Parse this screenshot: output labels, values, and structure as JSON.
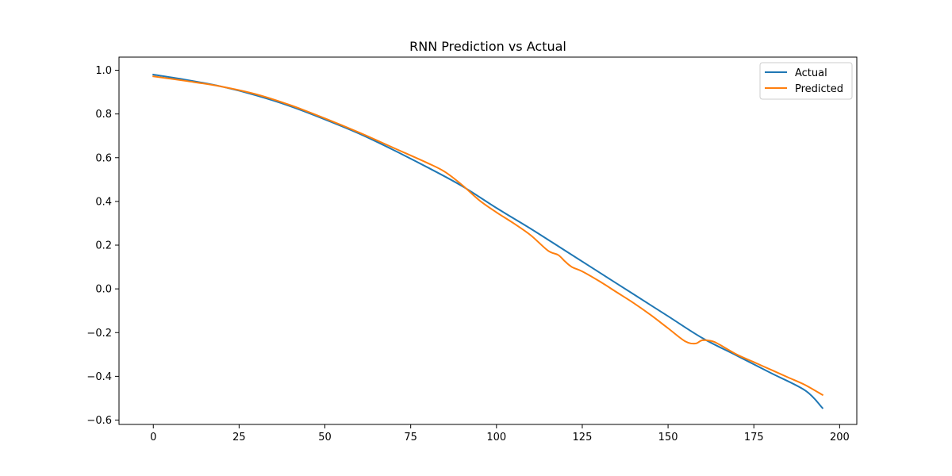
{
  "chart_data": {
    "type": "line",
    "title": "RNN Prediction vs Actual",
    "xlabel": "",
    "ylabel": "",
    "xlim": [
      -10,
      205
    ],
    "ylim": [
      -0.62,
      1.06
    ],
    "xticks": [
      0,
      25,
      50,
      75,
      100,
      125,
      150,
      175,
      200
    ],
    "yticks": [
      -0.6,
      -0.4,
      -0.2,
      0.0,
      0.2,
      0.4,
      0.6,
      0.8,
      1.0
    ],
    "xtick_labels": [
      "0",
      "25",
      "50",
      "75",
      "100",
      "125",
      "150",
      "175",
      "200"
    ],
    "ytick_labels": [
      "−0.6",
      "−0.4",
      "−0.2",
      "0.0",
      "0.2",
      "0.4",
      "0.6",
      "0.8",
      "1.0"
    ],
    "grid": false,
    "legend_position": "top-right",
    "series": [
      {
        "name": "Actual",
        "color": "#1f77b4",
        "x": [
          0,
          10,
          20,
          30,
          40,
          50,
          60,
          70,
          80,
          90,
          100,
          110,
          120,
          130,
          140,
          150,
          160,
          170,
          180,
          190,
          195
        ],
        "y": [
          0.98,
          0.955,
          0.925,
          0.885,
          0.835,
          0.775,
          0.71,
          0.635,
          0.555,
          0.47,
          0.37,
          0.275,
          0.175,
          0.075,
          -0.025,
          -0.125,
          -0.225,
          -0.305,
          -0.385,
          -0.465,
          -0.545
        ]
      },
      {
        "name": "Predicted",
        "color": "#ff7f0e",
        "x": [
          0,
          10,
          20,
          30,
          40,
          50,
          60,
          70,
          80,
          85,
          90,
          95,
          100,
          105,
          110,
          115,
          118,
          120,
          122,
          125,
          130,
          135,
          140,
          145,
          150,
          155,
          158,
          160,
          163,
          165,
          170,
          175,
          180,
          185,
          190,
          195
        ],
        "y": [
          0.972,
          0.95,
          0.925,
          0.89,
          0.84,
          0.78,
          0.715,
          0.645,
          0.575,
          0.535,
          0.475,
          0.405,
          0.35,
          0.3,
          0.245,
          0.175,
          0.155,
          0.125,
          0.1,
          0.08,
          0.035,
          -0.015,
          -0.065,
          -0.12,
          -0.18,
          -0.24,
          -0.25,
          -0.235,
          -0.24,
          -0.255,
          -0.3,
          -0.335,
          -0.37,
          -0.405,
          -0.44,
          -0.485
        ]
      }
    ]
  }
}
